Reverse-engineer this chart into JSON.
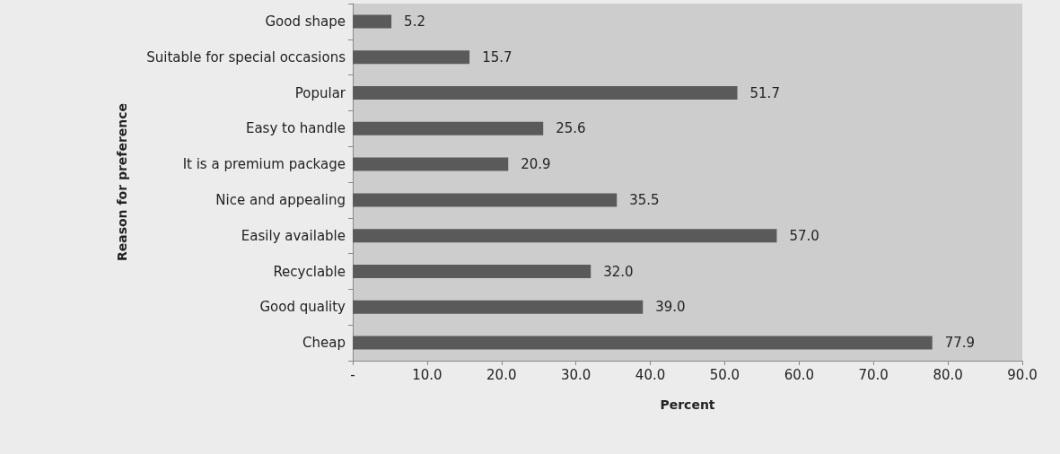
{
  "chart_data": {
    "type": "bar",
    "orientation": "horizontal",
    "xlabel": "Percent",
    "ylabel": "Reason for preference",
    "categories": [
      "Good shape",
      "Suitable for special occasions",
      "Popular",
      "Easy to handle",
      "It is a premium package",
      "Nice and appealing",
      "Easily available",
      "Recyclable",
      "Good quality",
      "Cheap"
    ],
    "values": [
      5.2,
      15.7,
      51.7,
      25.6,
      20.9,
      35.5,
      57.0,
      32.0,
      39.0,
      77.9
    ],
    "value_labels": [
      "5.2",
      "15.7",
      "51.7",
      "25.6",
      "20.9",
      "35.5",
      "57.0",
      "32.0",
      "39.0",
      "77.9"
    ],
    "color": "#5a5a5a",
    "xlim": [
      0,
      90
    ],
    "xticks": [
      {
        "value": 0,
        "label": "-"
      },
      {
        "value": 10,
        "label": "10.0"
      },
      {
        "value": 20,
        "label": "20.0"
      },
      {
        "value": 30,
        "label": "30.0"
      },
      {
        "value": 40,
        "label": "40.0"
      },
      {
        "value": 50,
        "label": "50.0"
      },
      {
        "value": 60,
        "label": "60.0"
      },
      {
        "value": 70,
        "label": "70.0"
      },
      {
        "value": 80,
        "label": "80.0"
      },
      {
        "value": 90,
        "label": "90.0"
      }
    ],
    "grid": false
  }
}
